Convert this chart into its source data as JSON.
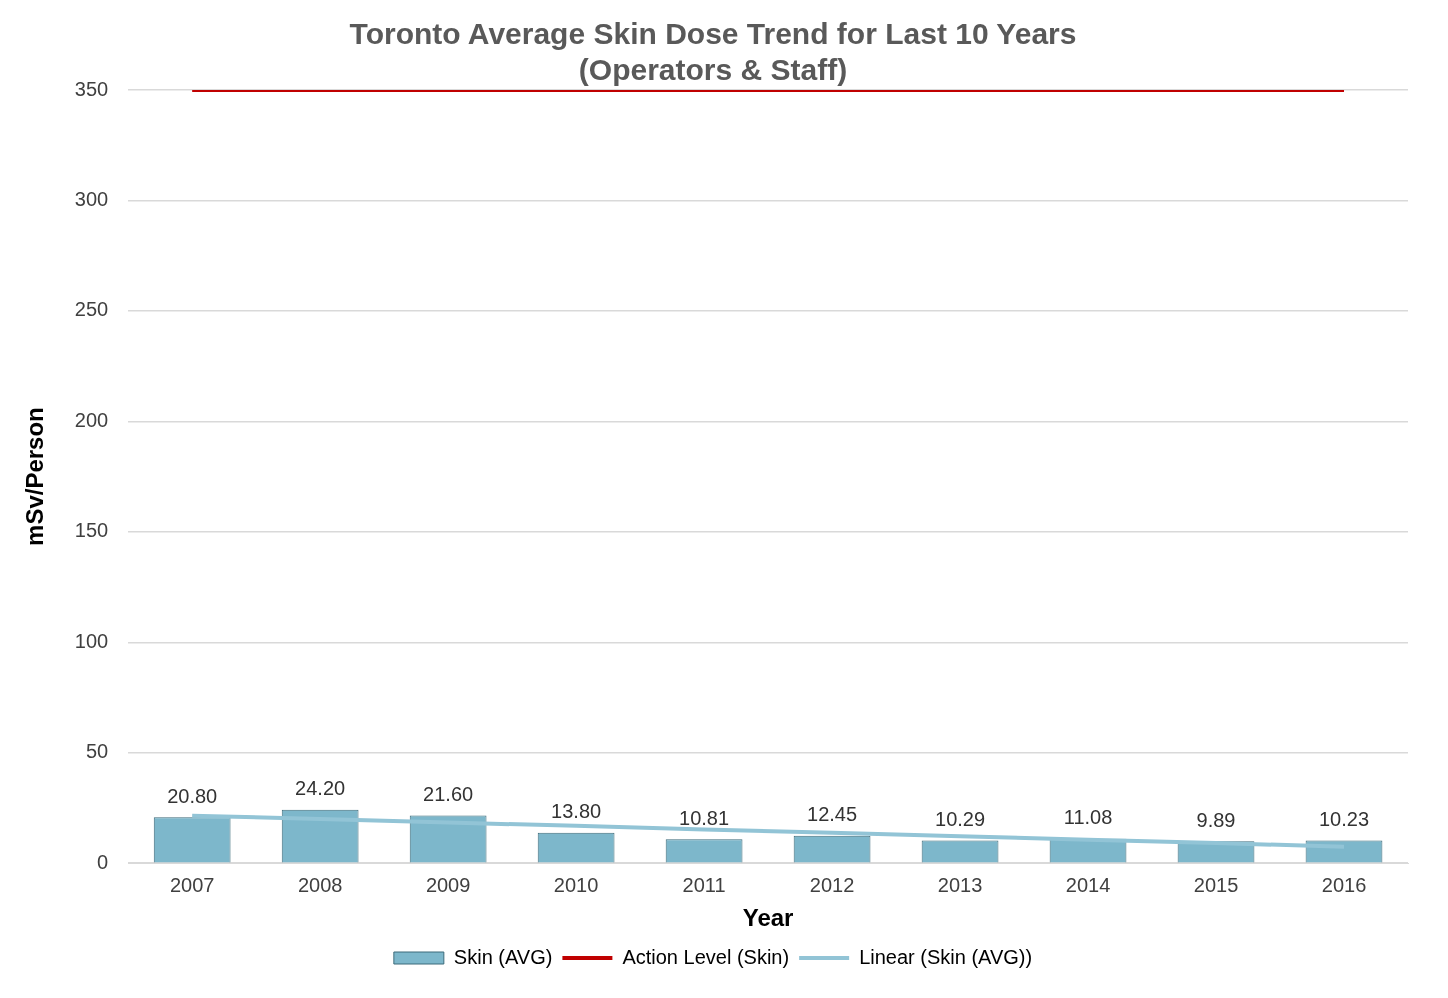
{
  "chart_data": {
    "type": "bar",
    "title": "Toronto Average Skin Dose Trend for Last 10 Years\n(Operators & Staff)",
    "xlabel": "Year",
    "ylabel": "mSv/Person",
    "categories": [
      "2007",
      "2008",
      "2009",
      "2010",
      "2011",
      "2012",
      "2013",
      "2014",
      "2015",
      "2016"
    ],
    "series": [
      {
        "name": "Skin (AVG)",
        "color": "#7db7cb",
        "values": [
          20.8,
          24.2,
          21.6,
          13.8,
          10.81,
          12.45,
          10.29,
          11.08,
          9.89,
          10.23
        ],
        "value_labels": [
          "20.80",
          "24.20",
          "21.60",
          "13.80",
          "10.81",
          "12.45",
          "10.29",
          "11.08",
          "9.89",
          "10.23"
        ]
      },
      {
        "name": "Action Level (Skin)",
        "type": "line",
        "color": "#c00000",
        "values": [
          350,
          350,
          350,
          350,
          350,
          350,
          350,
          350,
          350,
          350
        ]
      },
      {
        "name": "Linear (Skin (AVG))",
        "type": "line",
        "color": "#92c4d6",
        "values": [
          21.5,
          20.0,
          18.4,
          16.9,
          15.3,
          13.8,
          12.2,
          10.6,
          9.1,
          7.5
        ]
      }
    ],
    "ylim": [
      0,
      350
    ],
    "yticks": [
      0,
      50,
      100,
      150,
      200,
      250,
      300,
      350
    ],
    "grid": "y",
    "legend": "bottom",
    "marker": "none"
  }
}
